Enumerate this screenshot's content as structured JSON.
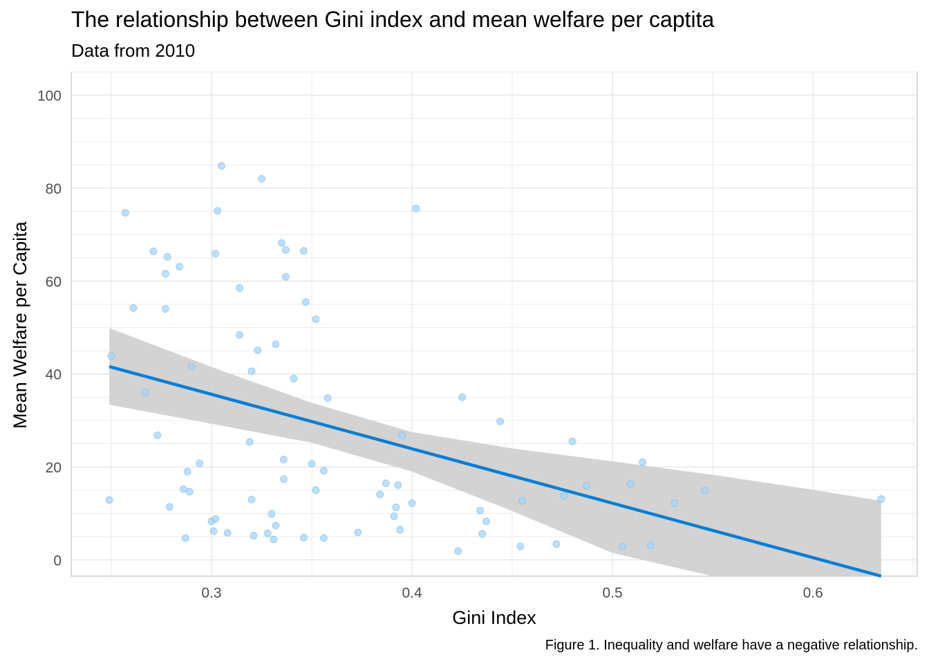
{
  "chart_data": {
    "type": "scatter",
    "title": "The relationship between Gini index and mean welfare per captita",
    "subtitle": "Data from 2010",
    "xlabel": "Gini Index",
    "ylabel": "Mean Welfare per Capita",
    "caption": "Figure 1. Inequality and welfare have a negative relationship.",
    "xlim": [
      0.23,
      0.652
    ],
    "ylim": [
      -3.5,
      105
    ],
    "x_ticks": [
      0.3,
      0.4,
      0.5,
      0.6
    ],
    "x_tick_labels": [
      "0.3",
      "0.4",
      "0.5",
      "0.6"
    ],
    "y_ticks": [
      0,
      20,
      40,
      60,
      80,
      100
    ],
    "y_tick_labels": [
      "0",
      "20",
      "40",
      "60",
      "80",
      "100"
    ],
    "grid": true,
    "point_color": "#a8d4f5",
    "point_stroke": "#79b8ea",
    "line_color": "#0a7dd4",
    "band_color": "#d3d3d3",
    "points": [
      {
        "x": 0.249,
        "y": 12.9
      },
      {
        "x": 0.25,
        "y": 43.9
      },
      {
        "x": 0.257,
        "y": 74.7
      },
      {
        "x": 0.261,
        "y": 54.2
      },
      {
        "x": 0.267,
        "y": 36.0
      },
      {
        "x": 0.271,
        "y": 66.4
      },
      {
        "x": 0.273,
        "y": 26.8
      },
      {
        "x": 0.277,
        "y": 61.6
      },
      {
        "x": 0.277,
        "y": 54.0
      },
      {
        "x": 0.278,
        "y": 65.2
      },
      {
        "x": 0.279,
        "y": 11.4
      },
      {
        "x": 0.284,
        "y": 63.1
      },
      {
        "x": 0.286,
        "y": 15.2
      },
      {
        "x": 0.287,
        "y": 4.7
      },
      {
        "x": 0.288,
        "y": 19.0
      },
      {
        "x": 0.289,
        "y": 14.7
      },
      {
        "x": 0.29,
        "y": 41.6
      },
      {
        "x": 0.294,
        "y": 20.8
      },
      {
        "x": 0.3,
        "y": 8.3
      },
      {
        "x": 0.301,
        "y": 6.2
      },
      {
        "x": 0.302,
        "y": 8.8
      },
      {
        "x": 0.302,
        "y": 65.9
      },
      {
        "x": 0.303,
        "y": 75.1
      },
      {
        "x": 0.305,
        "y": 84.8
      },
      {
        "x": 0.308,
        "y": 5.8
      },
      {
        "x": 0.314,
        "y": 58.5
      },
      {
        "x": 0.314,
        "y": 48.4
      },
      {
        "x": 0.319,
        "y": 25.4
      },
      {
        "x": 0.32,
        "y": 40.6
      },
      {
        "x": 0.32,
        "y": 13.0
      },
      {
        "x": 0.321,
        "y": 5.2
      },
      {
        "x": 0.323,
        "y": 45.1
      },
      {
        "x": 0.325,
        "y": 82.0
      },
      {
        "x": 0.328,
        "y": 5.7
      },
      {
        "x": 0.33,
        "y": 9.9
      },
      {
        "x": 0.331,
        "y": 4.4
      },
      {
        "x": 0.332,
        "y": 46.4
      },
      {
        "x": 0.332,
        "y": 7.4
      },
      {
        "x": 0.335,
        "y": 68.2
      },
      {
        "x": 0.336,
        "y": 21.6
      },
      {
        "x": 0.336,
        "y": 17.4
      },
      {
        "x": 0.337,
        "y": 60.9
      },
      {
        "x": 0.337,
        "y": 66.7
      },
      {
        "x": 0.341,
        "y": 39.0
      },
      {
        "x": 0.346,
        "y": 4.8
      },
      {
        "x": 0.346,
        "y": 66.5
      },
      {
        "x": 0.347,
        "y": 55.5
      },
      {
        "x": 0.35,
        "y": 20.7
      },
      {
        "x": 0.352,
        "y": 51.8
      },
      {
        "x": 0.352,
        "y": 15.0
      },
      {
        "x": 0.356,
        "y": 19.2
      },
      {
        "x": 0.356,
        "y": 4.7
      },
      {
        "x": 0.358,
        "y": 34.8
      },
      {
        "x": 0.373,
        "y": 5.9
      },
      {
        "x": 0.384,
        "y": 14.1
      },
      {
        "x": 0.387,
        "y": 16.5
      },
      {
        "x": 0.391,
        "y": 9.4
      },
      {
        "x": 0.392,
        "y": 11.3
      },
      {
        "x": 0.393,
        "y": 16.1
      },
      {
        "x": 0.394,
        "y": 6.5
      },
      {
        "x": 0.395,
        "y": 26.8
      },
      {
        "x": 0.4,
        "y": 12.2
      },
      {
        "x": 0.402,
        "y": 75.6
      },
      {
        "x": 0.423,
        "y": 1.9
      },
      {
        "x": 0.425,
        "y": 35.0
      },
      {
        "x": 0.434,
        "y": 10.6
      },
      {
        "x": 0.435,
        "y": 5.6
      },
      {
        "x": 0.437,
        "y": 8.3
      },
      {
        "x": 0.444,
        "y": 29.8
      },
      {
        "x": 0.454,
        "y": 2.9
      },
      {
        "x": 0.455,
        "y": 12.7
      },
      {
        "x": 0.472,
        "y": 3.4
      },
      {
        "x": 0.476,
        "y": 13.8
      },
      {
        "x": 0.48,
        "y": 25.5
      },
      {
        "x": 0.487,
        "y": 15.9
      },
      {
        "x": 0.505,
        "y": 2.9
      },
      {
        "x": 0.509,
        "y": 16.3
      },
      {
        "x": 0.515,
        "y": 21.0
      },
      {
        "x": 0.519,
        "y": 3.1
      },
      {
        "x": 0.531,
        "y": 12.2
      },
      {
        "x": 0.546,
        "y": 14.9
      },
      {
        "x": 0.634,
        "y": 13.1
      }
    ],
    "trend_line": {
      "x": [
        0.249,
        0.634
      ],
      "y": [
        41.6,
        -3.5
      ]
    },
    "confidence_band": {
      "x": [
        0.249,
        0.3,
        0.35,
        0.4,
        0.45,
        0.5,
        0.55,
        0.6,
        0.634
      ],
      "upper": [
        49.9,
        41.5,
        33.8,
        27.5,
        24.0,
        21.2,
        18.3,
        15.1,
        12.7
      ],
      "lower": [
        33.4,
        29.3,
        25.2,
        19.0,
        10.5,
        1.5,
        -3.5,
        -3.5,
        -3.5
      ]
    }
  }
}
